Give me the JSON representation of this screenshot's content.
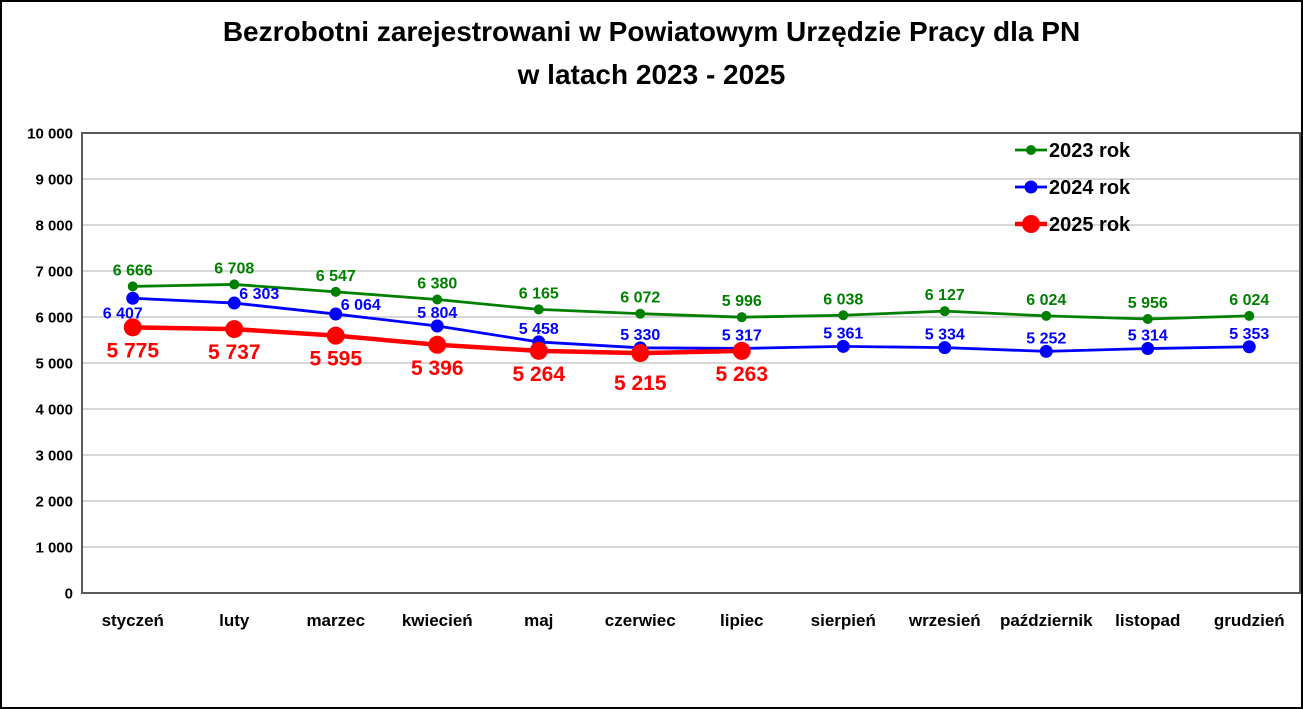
{
  "window": {
    "background_color": "#ffffff",
    "border_color": "#000000"
  },
  "chart_data": {
    "type": "line",
    "title": "Bezrobotni zarejestrowani w Powiatowym Urzędzie Pracy dla PN w latach 2023 - 2025",
    "title_lines": [
      "Bezrobotni zarejestrowani w Powiatowym Urzędzie Pracy dla PN",
      "w latach 2023 - 2025"
    ],
    "categories": [
      "styczeń",
      "luty",
      "marzec",
      "kwiecień",
      "maj",
      "czerwiec",
      "lipiec",
      "sierpień",
      "wrzesień",
      "październik",
      "listopad",
      "grudzień"
    ],
    "series": [
      {
        "name": "2023 rok",
        "color": "#008000",
        "values": [
          6666,
          6708,
          6547,
          6380,
          6165,
          6072,
          5996,
          6038,
          6127,
          6024,
          5956,
          6024
        ]
      },
      {
        "name": "2024 rok",
        "color": "#0000ff",
        "values": [
          6407,
          6303,
          6064,
          5804,
          5458,
          5330,
          5317,
          5361,
          5334,
          5252,
          5314,
          5353
        ]
      },
      {
        "name": "2025 rok",
        "color": "#ff0000",
        "values": [
          5775,
          5737,
          5595,
          5396,
          5264,
          5215,
          5263
        ]
      }
    ],
    "xlabel": "",
    "ylabel": "",
    "ylim": [
      0,
      10000
    ],
    "ytick_step": 1000,
    "grid": true,
    "gridline_color": "#bfbfbf",
    "plot_border_color": "#595959",
    "tick_label_color": "#000000",
    "legend_position": "top-right-inside",
    "data_labels": true,
    "number_format": "space-thousands"
  }
}
